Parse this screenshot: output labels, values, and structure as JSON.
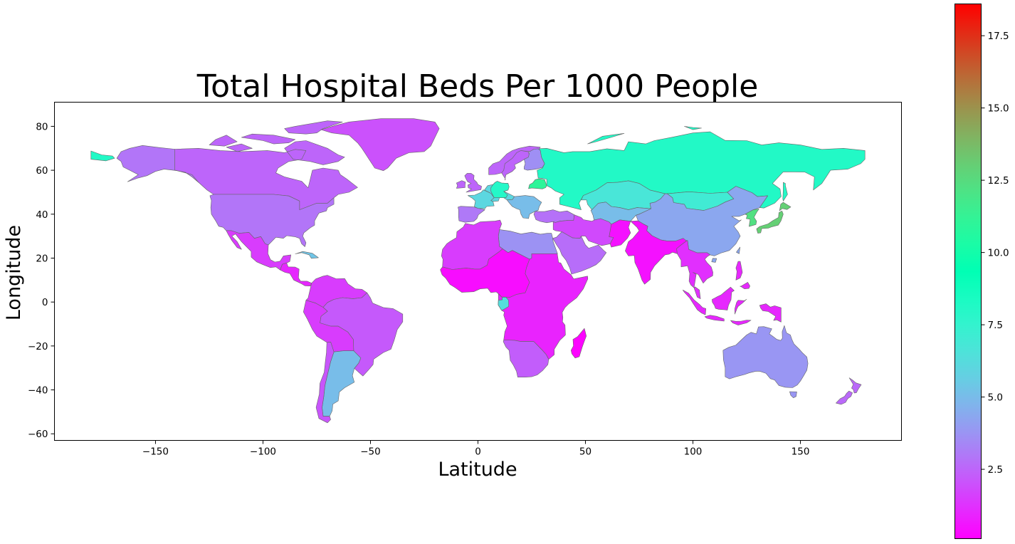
{
  "chart_data": {
    "type": "choropleth-map",
    "title": "Total Hospital Beds Per 1000 People",
    "xlabel": "Latitude",
    "ylabel": "Longitude",
    "xlim": [
      -197,
      197
    ],
    "ylim": [
      -63,
      91
    ],
    "x_ticks": [
      -150,
      -100,
      -50,
      0,
      50,
      100,
      150
    ],
    "x_tick_labels": [
      "−150",
      "−100",
      "−50",
      "0",
      "50",
      "100",
      "150"
    ],
    "y_ticks": [
      80,
      60,
      40,
      20,
      0,
      -20,
      -40,
      -60
    ],
    "y_tick_labels": [
      "80",
      "60",
      "40",
      "20",
      "0",
      "−20",
      "−40",
      "−60"
    ],
    "colorbar": {
      "colormap": "rainbow",
      "range": [
        0.1,
        18.6
      ],
      "ticks": [
        2.5,
        5.0,
        7.5,
        10.0,
        12.5,
        15.0,
        17.5
      ],
      "tick_labels": [
        "2.5",
        "5.0",
        "7.5",
        "10.0",
        "12.5",
        "15.0",
        "17.5"
      ]
    },
    "regions": [
      {
        "name": "Canada",
        "value": 2.5
      },
      {
        "name": "Alaska",
        "value": 2.9
      },
      {
        "name": "United States",
        "value": 2.9
      },
      {
        "name": "Greenland",
        "value": 2.0
      },
      {
        "name": "Mexico",
        "value": 1.5
      },
      {
        "name": "Central America",
        "value": 1.0
      },
      {
        "name": "Cuba",
        "value": 5.3
      },
      {
        "name": "Northern South America",
        "value": 1.5
      },
      {
        "name": "Brazil",
        "value": 2.2
      },
      {
        "name": "Bolivia / Peru",
        "value": 1.5
      },
      {
        "name": "Argentina",
        "value": 5.0
      },
      {
        "name": "Chile",
        "value": 2.1
      },
      {
        "name": "Russia",
        "value": 8.1
      },
      {
        "name": "Belarus",
        "value": 11.0
      },
      {
        "name": "Scandinavia",
        "value": 2.5
      },
      {
        "name": "Finland",
        "value": 3.6
      },
      {
        "name": "Western Europe",
        "value": 6.0
      },
      {
        "name": "Iberia",
        "value": 3.0
      },
      {
        "name": "France",
        "value": 6.0
      },
      {
        "name": "Germany",
        "value": 8.0
      },
      {
        "name": "UK",
        "value": 2.5
      },
      {
        "name": "Balkans",
        "value": 5.0
      },
      {
        "name": "Turkey",
        "value": 2.8
      },
      {
        "name": "Kazakhstan",
        "value": 6.7
      },
      {
        "name": "Mongolia",
        "value": 7.0
      },
      {
        "name": "Central Asia",
        "value": 5.0
      },
      {
        "name": "China",
        "value": 4.3
      },
      {
        "name": "Japan",
        "value": 13.0
      },
      {
        "name": "Korea",
        "value": 12.3
      },
      {
        "name": "India",
        "value": 0.5
      },
      {
        "name": "Middle East",
        "value": 1.8
      },
      {
        "name": "Saudi Arabia",
        "value": 2.7
      },
      {
        "name": "Egypt / Libya",
        "value": 3.7
      },
      {
        "name": "North Africa",
        "value": 1.5
      },
      {
        "name": "West Africa",
        "value": 0.4
      },
      {
        "name": "Central & East Africa",
        "value": 0.9
      },
      {
        "name": "Gabon",
        "value": 6.3
      },
      {
        "name": "Southern Africa",
        "value": 2.3
      },
      {
        "name": "Madagascar",
        "value": 0.2
      },
      {
        "name": "Southeast Asia",
        "value": 1.2
      },
      {
        "name": "Indonesia",
        "value": 1.0
      },
      {
        "name": "Australia",
        "value": 3.8
      },
      {
        "name": "New Zealand",
        "value": 2.6
      }
    ]
  }
}
